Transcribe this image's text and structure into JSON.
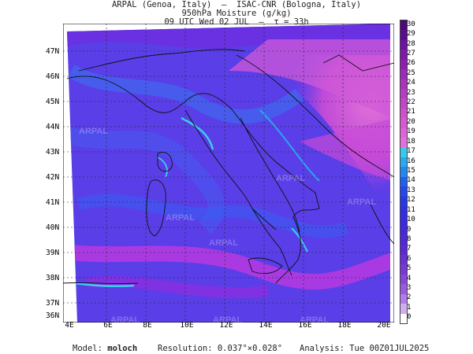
{
  "header": {
    "line1": "ARPAL (Genoa, Italy)  –  ISAC-CNR (Bologna, Italy)",
    "line2": "950hPa Moisture (g/kg)",
    "line3": "09 UTC Wed 02 JUL  –  τ = 33h"
  },
  "map": {
    "lat_labels": [
      "47N",
      "46N",
      "45N",
      "44N",
      "43N",
      "42N",
      "41N",
      "40N",
      "39N",
      "38N",
      "37N",
      "36N"
    ],
    "lon_labels": [
      "4E",
      "6E",
      "8E",
      "10E",
      "12E",
      "14E",
      "16E",
      "18E",
      "20E"
    ],
    "watermark": "ARPAL",
    "colors": {
      "dry": "#6a2ee0",
      "mid": "#3f5ff0",
      "moist": "#d04ad8",
      "coast": "#39d0f0"
    }
  },
  "colorbar": {
    "labels": [
      "30",
      "29",
      "28",
      "27",
      "26",
      "25",
      "24",
      "23",
      "22",
      "21",
      "20",
      "19",
      "18",
      "17",
      "16",
      "15",
      "14",
      "13",
      "12",
      "11",
      "10",
      "9",
      "8",
      "7",
      "6",
      "5",
      "4",
      "3",
      "2",
      "1",
      "0"
    ]
  },
  "footer": {
    "model_label": "Model:",
    "model_value": "moloch",
    "resolution": "Resolution: 0.037°×0.028°",
    "analysis": "Analysis: Tue 00Z01JUL2025"
  }
}
